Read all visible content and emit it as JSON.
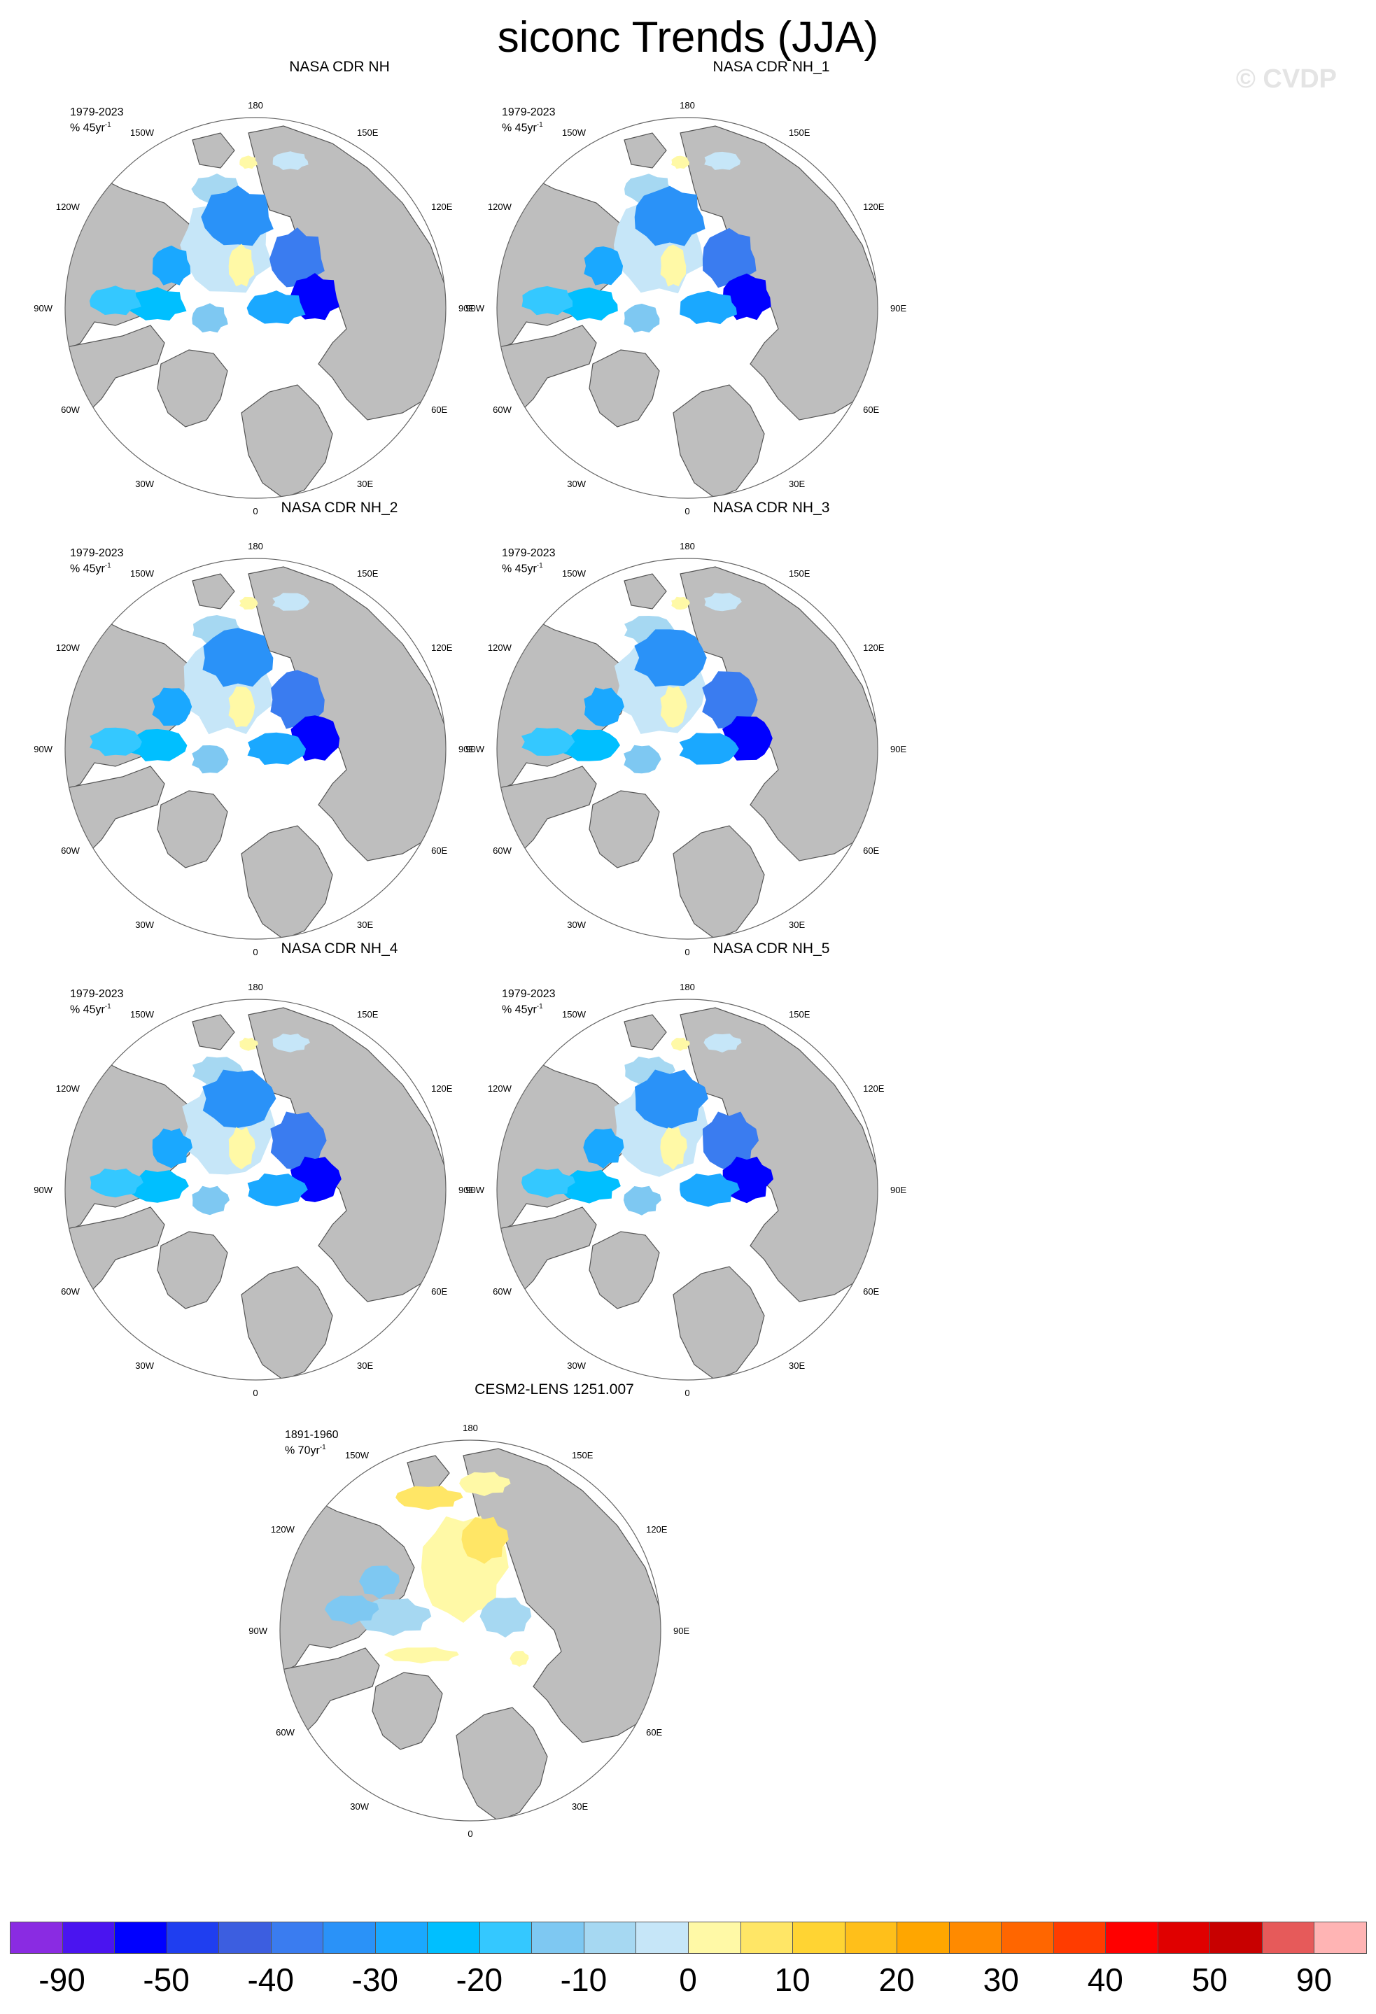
{
  "title": "siconc Trends (JJA)",
  "watermark": "© CVDP",
  "longitude_labels": [
    "180",
    "150E",
    "120E",
    "90E",
    "60E",
    "30E",
    "0",
    "30W",
    "60W",
    "90W",
    "120W",
    "150W"
  ],
  "panels": [
    {
      "title": "NASA CDR NH",
      "period": "1979-2023",
      "units": "% 45yr",
      "units_sup": "-1",
      "pattern": "obs"
    },
    {
      "title": "NASA CDR NH_1",
      "period": "1979-2023",
      "units": "% 45yr",
      "units_sup": "-1",
      "pattern": "obs"
    },
    {
      "title": "NASA CDR NH_2",
      "period": "1979-2023",
      "units": "% 45yr",
      "units_sup": "-1",
      "pattern": "obs"
    },
    {
      "title": "NASA CDR NH_3",
      "period": "1979-2023",
      "units": "% 45yr",
      "units_sup": "-1",
      "pattern": "obs"
    },
    {
      "title": "NASA CDR NH_4",
      "period": "1979-2023",
      "units": "% 45yr",
      "units_sup": "-1",
      "pattern": "obs"
    },
    {
      "title": "NASA CDR NH_5",
      "period": "1979-2023",
      "units": "% 45yr",
      "units_sup": "-1",
      "pattern": "obs"
    },
    {
      "title": "CESM2-LENS 1251.007",
      "period": "1891-1960",
      "units": "% 70yr",
      "units_sup": "-1",
      "pattern": "model"
    }
  ],
  "colorbar": {
    "colors": [
      "#8a2be2",
      "#4a14f0",
      "#0000ff",
      "#1f3ef0",
      "#3c5ee0",
      "#3a7cf0",
      "#2a92f8",
      "#1aa8ff",
      "#00bfff",
      "#34c8ff",
      "#7ec8f2",
      "#a6d8f2",
      "#c6e6f8",
      "#fff9a6",
      "#ffe666",
      "#ffd433",
      "#ffbf1a",
      "#ffa600",
      "#ff8a00",
      "#ff6600",
      "#ff3c00",
      "#ff0000",
      "#e00000",
      "#c80000",
      "#e65a5a",
      "#ffb4b4"
    ],
    "tick_labels": [
      "-90",
      "-50",
      "-40",
      "-30",
      "-20",
      "-10",
      "0",
      "10",
      "20",
      "30",
      "40",
      "50",
      "90"
    ]
  },
  "colors": {
    "land": "#bebebe",
    "ocean": "#ffffff",
    "coast": "#555555"
  }
}
